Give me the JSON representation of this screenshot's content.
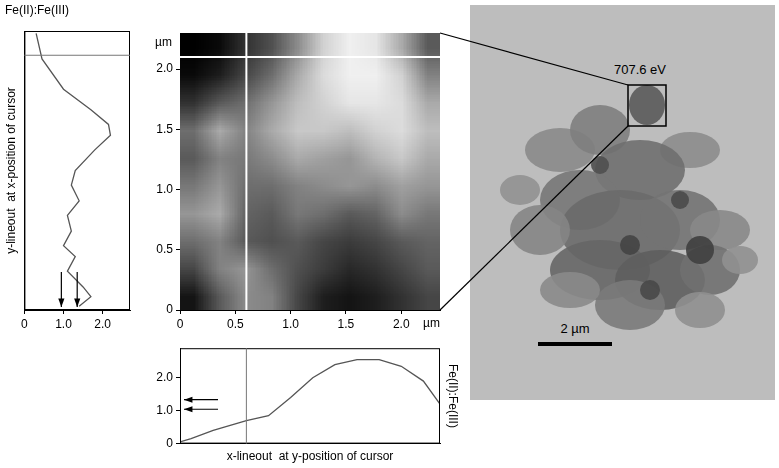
{
  "chart_data": [
    {
      "type": "line",
      "orientation": "horizontal",
      "title": "Fe(II):Fe(III)",
      "ylabel": "y-lineout  at x-position of cursor",
      "y": [
        2.28,
        2.07,
        1.82,
        1.65,
        1.53,
        1.44,
        1.32,
        1.15,
        1.03,
        0.9,
        0.78,
        0.65,
        0.53,
        0.44,
        0.32,
        0.19,
        0.11,
        0.03
      ],
      "values": [
        0.3,
        0.45,
        1.0,
        1.7,
        2.15,
        2.2,
        1.8,
        1.3,
        1.2,
        1.4,
        1.1,
        1.2,
        1.0,
        1.3,
        1.1,
        1.5,
        1.7,
        1.4
      ],
      "xlim": [
        0,
        2.7
      ],
      "xticks": [
        0,
        {
          "value": 1,
          "label": "1.0"
        },
        {
          "value": 2,
          "label": "2.0"
        }
      ],
      "ylim": [
        0,
        2.3
      ],
      "cursor": 2.1,
      "color": "#555555",
      "tick_labels": "x",
      "grid": false
    },
    {
      "type": "heatmap",
      "xlabel": "µm",
      "ylabel": "µm",
      "xlim": [
        0,
        2.35
      ],
      "ylim": [
        0,
        2.3
      ],
      "xticks": [
        0,
        0.5,
        {
          "value": 1,
          "label": "1.0"
        },
        1.5,
        {
          "value": 2,
          "label": "2.0"
        }
      ],
      "yticks": [
        0,
        0.5,
        {
          "value": 1,
          "label": "1.0"
        },
        1.5,
        {
          "value": 2,
          "label": "2.0"
        }
      ],
      "cells": [
        [
          0.3,
          1.0,
          1.5,
          1.4,
          0.8,
          0.4,
          0.3,
          0.4,
          0.6,
          0.8
        ],
        [
          0.8,
          1.4,
          1.6,
          1.2,
          0.9,
          0.7,
          0.5,
          0.6,
          0.8,
          1.0
        ],
        [
          1.2,
          1.4,
          1.0,
          0.9,
          1.0,
          0.8,
          0.7,
          0.8,
          1.0,
          1.1
        ],
        [
          1.6,
          1.8,
          1.1,
          1.0,
          1.3,
          1.2,
          1.0,
          1.1,
          1.5,
          1.3
        ],
        [
          1.3,
          1.6,
          1.2,
          1.2,
          1.4,
          1.5,
          1.6,
          1.5,
          1.7,
          1.6
        ],
        [
          1.0,
          1.4,
          1.3,
          1.5,
          1.8,
          1.7,
          1.6,
          1.9,
          2.1,
          1.8
        ],
        [
          1.2,
          1.8,
          1.4,
          1.8,
          2.1,
          2.1,
          2.0,
          2.2,
          2.3,
          2.0
        ],
        [
          0.6,
          1.0,
          1.2,
          1.6,
          2.0,
          2.2,
          2.4,
          2.4,
          2.3,
          1.8
        ],
        [
          0.2,
          0.4,
          0.8,
          1.2,
          1.8,
          2.3,
          2.5,
          2.5,
          2.2,
          1.4
        ],
        [
          0.1,
          0.2,
          0.6,
          0.9,
          1.5,
          2.2,
          2.5,
          2.4,
          1.8,
          1.0
        ]
      ],
      "cursor": {
        "x": 0.6,
        "y": 2.1
      }
    },
    {
      "type": "line",
      "xlabel": "x-lineout  at y-position of cursor",
      "ylabel": "Fe(II):Fe(III)",
      "x": [
        0,
        0.1,
        0.3,
        0.5,
        0.6,
        0.8,
        1.0,
        1.2,
        1.4,
        1.6,
        1.8,
        2.0,
        2.2,
        2.35
      ],
      "values": [
        0.05,
        0.15,
        0.4,
        0.6,
        0.7,
        0.85,
        1.4,
        2.0,
        2.4,
        2.55,
        2.55,
        2.35,
        1.9,
        1.2
      ],
      "xlim": [
        0,
        2.35
      ],
      "ylim": [
        0,
        2.9
      ],
      "yticks": [
        0,
        {
          "value": 1,
          "label": "1.0"
        },
        {
          "value": 2,
          "label": "2.0"
        }
      ],
      "cursor": 0.6,
      "color": "#555555",
      "tick_labels": "y",
      "grid": false
    }
  ],
  "image": {
    "label": "707.6 eV",
    "scale_bar": "2 µm"
  }
}
